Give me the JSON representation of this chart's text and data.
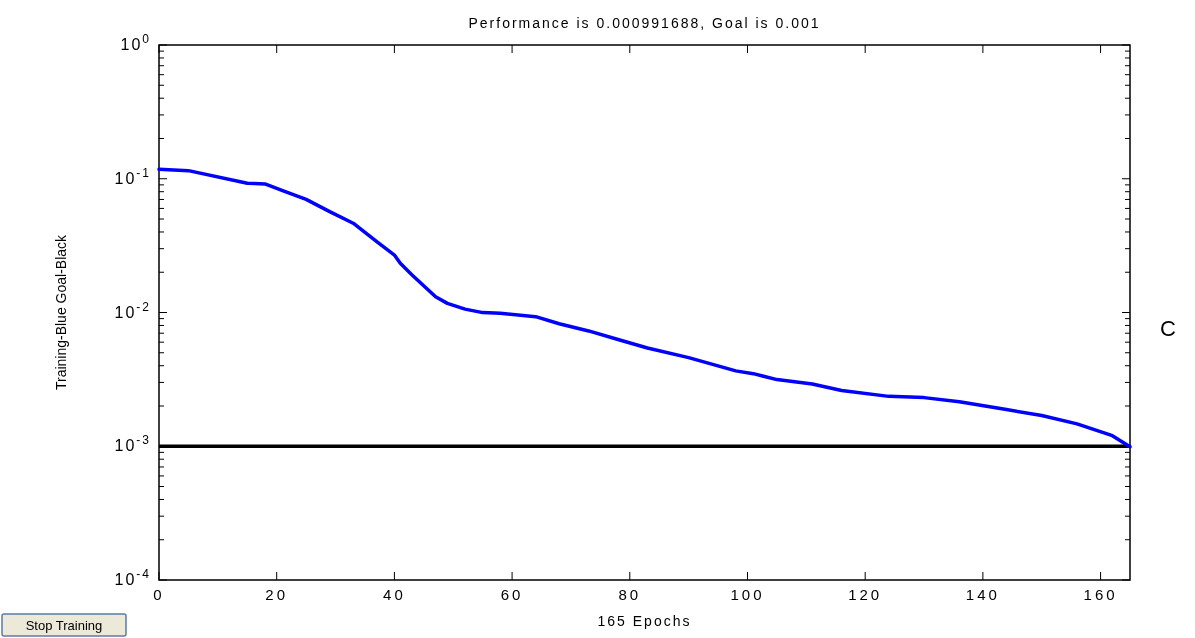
{
  "chart_data": {
    "type": "line",
    "title": "Performance is 0.000991688, Goal is 0.001",
    "xlabel": "165 Epochs",
    "ylabel": "Training-Blue  Goal-Black",
    "log": "y",
    "grid": false,
    "xlim": [
      0,
      165
    ],
    "xticks": [
      0,
      20,
      40,
      60,
      80,
      100,
      120,
      140,
      160
    ],
    "ylim": [
      0.0001,
      1
    ],
    "yticks": [
      {
        "value": 0.0001,
        "label": "10$^{-4}$"
      },
      {
        "value": 0.0002,
        "label": null
      },
      {
        "value": 0.0003,
        "label": null
      },
      {
        "value": 0.0004,
        "label": null
      },
      {
        "value": 0.0005,
        "label": null
      },
      {
        "value": 0.0006,
        "label": null
      },
      {
        "value": 0.0007,
        "label": null
      },
      {
        "value": 0.0008,
        "label": null
      },
      {
        "value": 0.0009,
        "label": null
      },
      {
        "value": 0.001,
        "label": "10$^{-3}$"
      },
      {
        "value": 0.002,
        "label": null
      },
      {
        "value": 0.003,
        "label": null
      },
      {
        "value": 0.004,
        "label": null
      },
      {
        "value": 0.005,
        "label": null
      },
      {
        "value": 0.006,
        "label": null
      },
      {
        "value": 0.007,
        "label": null
      },
      {
        "value": 0.008,
        "label": null
      },
      {
        "value": 0.009,
        "label": null
      },
      {
        "value": 0.01,
        "label": "10$^{-2}$"
      },
      {
        "value": 0.02,
        "label": null
      },
      {
        "value": 0.03,
        "label": null
      },
      {
        "value": 0.04,
        "label": null
      },
      {
        "value": 0.05,
        "label": null
      },
      {
        "value": 0.06,
        "label": null
      },
      {
        "value": 0.07,
        "label": null
      },
      {
        "value": 0.08,
        "label": null
      },
      {
        "value": 0.09,
        "label": null
      },
      {
        "value": 0.1,
        "label": "10$^{-1}$"
      },
      {
        "value": 0.2,
        "label": null
      },
      {
        "value": 0.3,
        "label": null
      },
      {
        "value": 0.4,
        "label": null
      },
      {
        "value": 0.5,
        "label": null
      },
      {
        "value": 0.6,
        "label": null
      },
      {
        "value": 0.7,
        "label": null
      },
      {
        "value": 0.8,
        "label": null
      },
      {
        "value": 0.9,
        "label": null
      },
      {
        "value": 1,
        "label": "10$^{0}$"
      }
    ],
    "series": [
      {
        "color": "#0000ff",
        "x": [
          0,
          5,
          15,
          18,
          21,
          25,
          29,
          33,
          37,
          40,
          41,
          43,
          47,
          49,
          52,
          55,
          58,
          64,
          68,
          73,
          78,
          83,
          90,
          98,
          101,
          105,
          111,
          116,
          124,
          130,
          136,
          144,
          150,
          156,
          162,
          165
        ],
        "values": [
          0.118,
          0.115,
          0.0925,
          0.0914,
          0.0815,
          0.0701,
          0.0568,
          0.0465,
          0.0339,
          0.0269,
          0.0233,
          0.0191,
          0.0131,
          0.0117,
          0.0106,
          0.00998,
          0.00986,
          0.00931,
          0.00824,
          0.00728,
          0.00628,
          0.00543,
          0.0046,
          0.00366,
          0.00349,
          0.00315,
          0.00292,
          0.00261,
          0.00236,
          0.00231,
          0.00215,
          0.00188,
          0.0017,
          0.00147,
          0.0012,
          0.000991688
        ]
      }
    ],
    "ref_lines": [
      {
        "axis": "y",
        "value": 0.001,
        "color": "#000000"
      }
    ],
    "annotations": [
      "C",
      "Stop Training"
    ]
  }
}
